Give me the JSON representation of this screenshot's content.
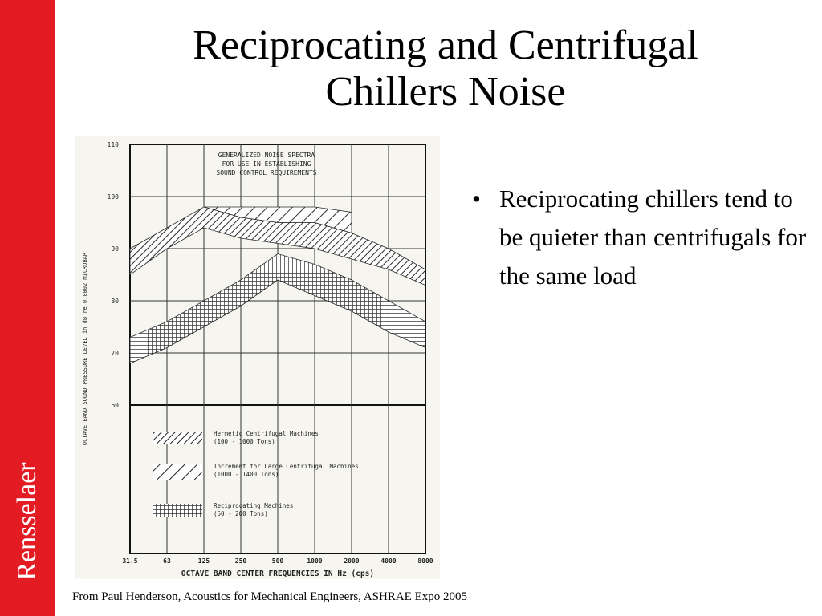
{
  "slide": {
    "title_line1": "Reciprocating and Centrifugal",
    "title_line2": "Chillers Noise",
    "bullets": [
      "Reciprocating chillers tend to be quieter than centrifugals for the same load"
    ],
    "credit": "From Paul Henderson, Acoustics for Mechanical Engineers, ASHRAE Expo 2005",
    "brand": "Rensselaer",
    "brand_color": "#e31b23"
  },
  "chart_data": {
    "type": "area",
    "title_lines": [
      "GENERALIZED NOISE SPECTRA",
      "FOR USE IN ESTABLISHING",
      "SOUND CONTROL REQUIREMENTS"
    ],
    "xlabel": "OCTAVE BAND CENTER FREQUENCIES IN Hz (cps)",
    "ylabel": "OCTAVE BAND SOUND PRESSURE LEVEL in dB re 0.0002 MICROBAR",
    "categories": [
      "31.5",
      "63",
      "125",
      "250",
      "500",
      "1000",
      "2000",
      "4000",
      "8000"
    ],
    "y_ticks": [
      "60",
      "70",
      "80",
      "90",
      "100",
      "110"
    ],
    "ylim": [
      60,
      110
    ],
    "grid": true,
    "legend_position": "bottom-inside",
    "series": [
      {
        "name": "Hermetic Centrifugal Machines",
        "sub": "(100 - 1000 Tons)",
        "pattern": "diagonal-dense",
        "upper": [
          90,
          94,
          98,
          96,
          95,
          95,
          93,
          90,
          86
        ],
        "lower": [
          85,
          90,
          94,
          92,
          91,
          90,
          88,
          86,
          83
        ]
      },
      {
        "name": "Increment for Large Centrifugal Machines",
        "sub": "(1000 - 1400 Tons)",
        "pattern": "diagonal-wide",
        "upper": [
          null,
          null,
          98,
          98,
          98,
          98,
          97,
          null,
          null
        ],
        "lower": [
          null,
          null,
          98,
          96,
          95,
          95,
          93,
          null,
          null
        ]
      },
      {
        "name": "Reciprocating Machines",
        "sub": "(50 - 200 Tons)",
        "pattern": "crosshatch",
        "upper": [
          73,
          76,
          80,
          84,
          89,
          87,
          84,
          80,
          76
        ],
        "lower": [
          68,
          71,
          75,
          79,
          84,
          81,
          78,
          74,
          71
        ]
      }
    ]
  }
}
